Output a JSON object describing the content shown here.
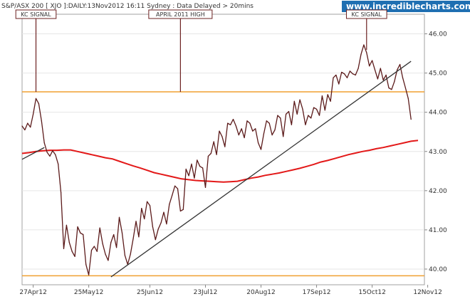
{
  "header": {
    "title": "S&P/ASX 200 [ XJO ]:DAILY:13Nov2012 16:11 Sydney : Data Delayed > 20mins",
    "site": "www.incrediblecharts.com"
  },
  "chart_data": {
    "type": "line",
    "xlim": [
      0,
      142
    ],
    "ylim": [
      39.6,
      46.5
    ],
    "x_ticks": [
      {
        "label": "27Apr12",
        "x": 4
      },
      {
        "label": "25May12",
        "x": 24
      },
      {
        "label": "25Jun12",
        "x": 46
      },
      {
        "label": "23Jul12",
        "x": 66
      },
      {
        "label": "20Aug12",
        "x": 86
      },
      {
        "label": "17Sep12",
        "x": 106
      },
      {
        "label": "15Oct12",
        "x": 126
      },
      {
        "label": "12Nov12",
        "x": 146
      }
    ],
    "y_ticks": [
      {
        "label": "40.00",
        "value": 40.0
      },
      {
        "label": "41.00",
        "value": 41.0
      },
      {
        "label": "42.00",
        "value": 42.0
      },
      {
        "label": "43.00",
        "value": 43.0
      },
      {
        "label": "44.00",
        "value": 44.0
      },
      {
        "label": "45.00",
        "value": 45.0
      },
      {
        "label": "46.00",
        "value": 46.0
      }
    ],
    "series": [
      {
        "kind": "price",
        "color": "#5b1a1a",
        "values": [
          43.65,
          43.55,
          43.72,
          43.62,
          43.95,
          44.35,
          44.22,
          43.78,
          43.22,
          42.98,
          42.88,
          43.02,
          42.92,
          42.68,
          41.95,
          40.52,
          41.12,
          40.68,
          40.45,
          40.32,
          41.08,
          40.92,
          40.88,
          40.12,
          39.85,
          40.48,
          40.58,
          40.45,
          41.05,
          40.65,
          40.38,
          40.22,
          40.68,
          40.88,
          40.55,
          41.32,
          40.92,
          40.35,
          40.12,
          40.38,
          40.78,
          41.22,
          40.82,
          41.55,
          41.28,
          41.72,
          41.62,
          41.08,
          40.75,
          41.02,
          41.18,
          41.45,
          41.15,
          41.65,
          41.88,
          42.12,
          42.05,
          41.48,
          41.52,
          42.55,
          42.38,
          42.68,
          42.32,
          42.78,
          42.62,
          42.58,
          42.08,
          42.88,
          42.95,
          43.25,
          42.92,
          43.52,
          43.38,
          43.12,
          43.72,
          43.68,
          43.82,
          43.65,
          43.42,
          43.58,
          43.35,
          43.78,
          43.72,
          43.52,
          43.58,
          43.22,
          43.05,
          43.45,
          43.78,
          43.72,
          43.42,
          43.55,
          43.92,
          43.85,
          43.38,
          43.95,
          44.02,
          43.68,
          44.28,
          43.95,
          44.32,
          44.08,
          43.68,
          43.92,
          43.85,
          44.12,
          44.08,
          43.92,
          44.42,
          44.05,
          44.45,
          44.28,
          44.88,
          44.95,
          44.72,
          45.02,
          44.98,
          44.88,
          45.05,
          44.98,
          44.95,
          45.12,
          45.48,
          45.72,
          45.52,
          45.18,
          45.32,
          45.08,
          44.85,
          45.12,
          44.82,
          44.95,
          44.62,
          44.58,
          44.78,
          45.08,
          45.22,
          44.88,
          44.62,
          44.35,
          43.82
        ]
      },
      {
        "kind": "moving-average",
        "color": "#e31818",
        "values": [
          42.95,
          42.97,
          43.0,
          43.02,
          43.03,
          43.03,
          43.04,
          43.04,
          43.0,
          42.96,
          42.92,
          42.88,
          42.84,
          42.81,
          42.75,
          42.69,
          42.63,
          42.58,
          42.52,
          42.46,
          42.42,
          42.38,
          42.34,
          42.3,
          42.28,
          42.26,
          42.25,
          42.24,
          42.23,
          42.22,
          42.23,
          42.24,
          42.28,
          42.32,
          42.35,
          42.39,
          42.42,
          42.45,
          42.49,
          42.53,
          42.57,
          42.62,
          42.67,
          42.73,
          42.77,
          42.82,
          42.87,
          42.92,
          42.96,
          43.0,
          43.03,
          43.07,
          43.1,
          43.14,
          43.18,
          43.22,
          43.26,
          43.28
        ]
      },
      {
        "kind": "trend-line",
        "color": "#333333",
        "points": [
          {
            "x": 0,
            "y": 42.8
          },
          {
            "x": 8,
            "y": 43.1
          }
        ]
      },
      {
        "kind": "trend-line",
        "color": "#333333",
        "points": [
          {
            "x": 32,
            "y": 39.8
          },
          {
            "x": 140,
            "y": 45.3
          }
        ]
      }
    ],
    "ma_x_step": 2.5,
    "hlines": [
      {
        "value": 44.52,
        "color": "#f0a030"
      },
      {
        "value": 39.83,
        "color": "#f0a030"
      }
    ],
    "annotations": [
      {
        "label": "KC SIGNAL",
        "x": 5
      },
      {
        "label": "APRIL 2011 HIGH",
        "x": 57
      },
      {
        "label": "KC SIGNAL",
        "x": 124
      }
    ]
  }
}
